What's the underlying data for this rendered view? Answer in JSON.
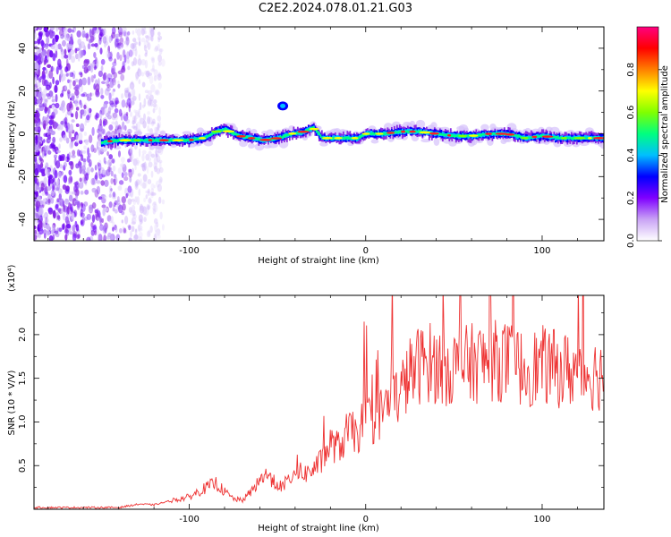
{
  "title": "C2E2.2024.078.01.21.G03",
  "chart_data": [
    {
      "type": "heatmap",
      "xlabel": "Height of straight line (km)",
      "ylabel": "Frequency (Hz)",
      "xlim": [
        -188,
        135
      ],
      "ylim": [
        -50,
        50
      ],
      "xticks": [
        -100,
        0,
        100
      ],
      "yticks": [
        -40,
        -20,
        0,
        20,
        40
      ],
      "colorbar": {
        "label": "Normalized spectral amplitude",
        "range": [
          0,
          1
        ],
        "ticks": [
          "0.0",
          "0.2",
          "0.4",
          "0.6",
          "0.8"
        ],
        "colors": [
          "#ffffff",
          "#c9a3f5",
          "#7f00ff",
          "#0000ff",
          "#00bfff",
          "#00ff80",
          "#80ff00",
          "#ffff00",
          "#ff8000",
          "#ff0000",
          "#ff0080"
        ]
      },
      "ridge": {
        "x": [
          -150,
          -140,
          -120,
          -100,
          -92,
          -85,
          -80,
          -72,
          -65,
          -58,
          -50,
          -42,
          -35,
          -30,
          -25,
          -15,
          -5,
          0,
          10,
          20,
          30,
          40,
          50,
          60,
          70,
          80,
          90,
          100,
          110,
          120,
          130,
          135
        ],
        "y": [
          -4,
          -3,
          -3,
          -3,
          -2,
          1,
          2,
          -1,
          -2,
          -3,
          -2,
          0,
          1,
          3,
          -2,
          -2,
          -2,
          0,
          0,
          1,
          1,
          0,
          -1,
          -1,
          0,
          0,
          -2,
          -1,
          -2,
          -2,
          -2,
          -2
        ]
      },
      "noise_region_x": [
        -188,
        -135
      ],
      "blob": {
        "x": -47,
        "y": 13
      }
    },
    {
      "type": "line",
      "xlabel": "Height of straight line (km)",
      "ylabel": "SNR (10 * V/V)",
      "yscale_label": "(x10⁴)",
      "xlim": [
        -188,
        135
      ],
      "ylim": [
        0,
        2.45
      ],
      "xticks": [
        -100,
        0,
        100
      ],
      "yticks": [
        0.5,
        1.0,
        1.5,
        2.0
      ],
      "series": [
        {
          "color": "#ee3333",
          "envelope": {
            "x": [
              -188,
              -140,
              -128,
              -120,
              -110,
              -100,
              -95,
              -90,
              -85,
              -80,
              -75,
              -70,
              -65,
              -60,
              -55,
              -50,
              -45,
              -40,
              -35,
              -30,
              -25,
              -20,
              -15,
              -10,
              -5,
              0,
              5,
              10,
              15,
              20,
              25,
              30,
              35,
              40,
              50,
              60,
              70,
              80,
              90,
              100,
              110,
              120,
              130,
              135
            ],
            "y": [
              0.02,
              0.02,
              0.06,
              0.05,
              0.1,
              0.14,
              0.2,
              0.25,
              0.3,
              0.2,
              0.12,
              0.1,
              0.2,
              0.35,
              0.4,
              0.25,
              0.3,
              0.45,
              0.4,
              0.45,
              0.55,
              0.75,
              0.7,
              0.9,
              0.85,
              1.05,
              1.0,
              1.15,
              1.25,
              1.35,
              1.55,
              1.65,
              1.7,
              1.65,
              1.62,
              1.67,
              1.7,
              1.7,
              1.6,
              1.65,
              1.6,
              1.58,
              1.55,
              1.55
            ]
          }
        }
      ]
    }
  ]
}
